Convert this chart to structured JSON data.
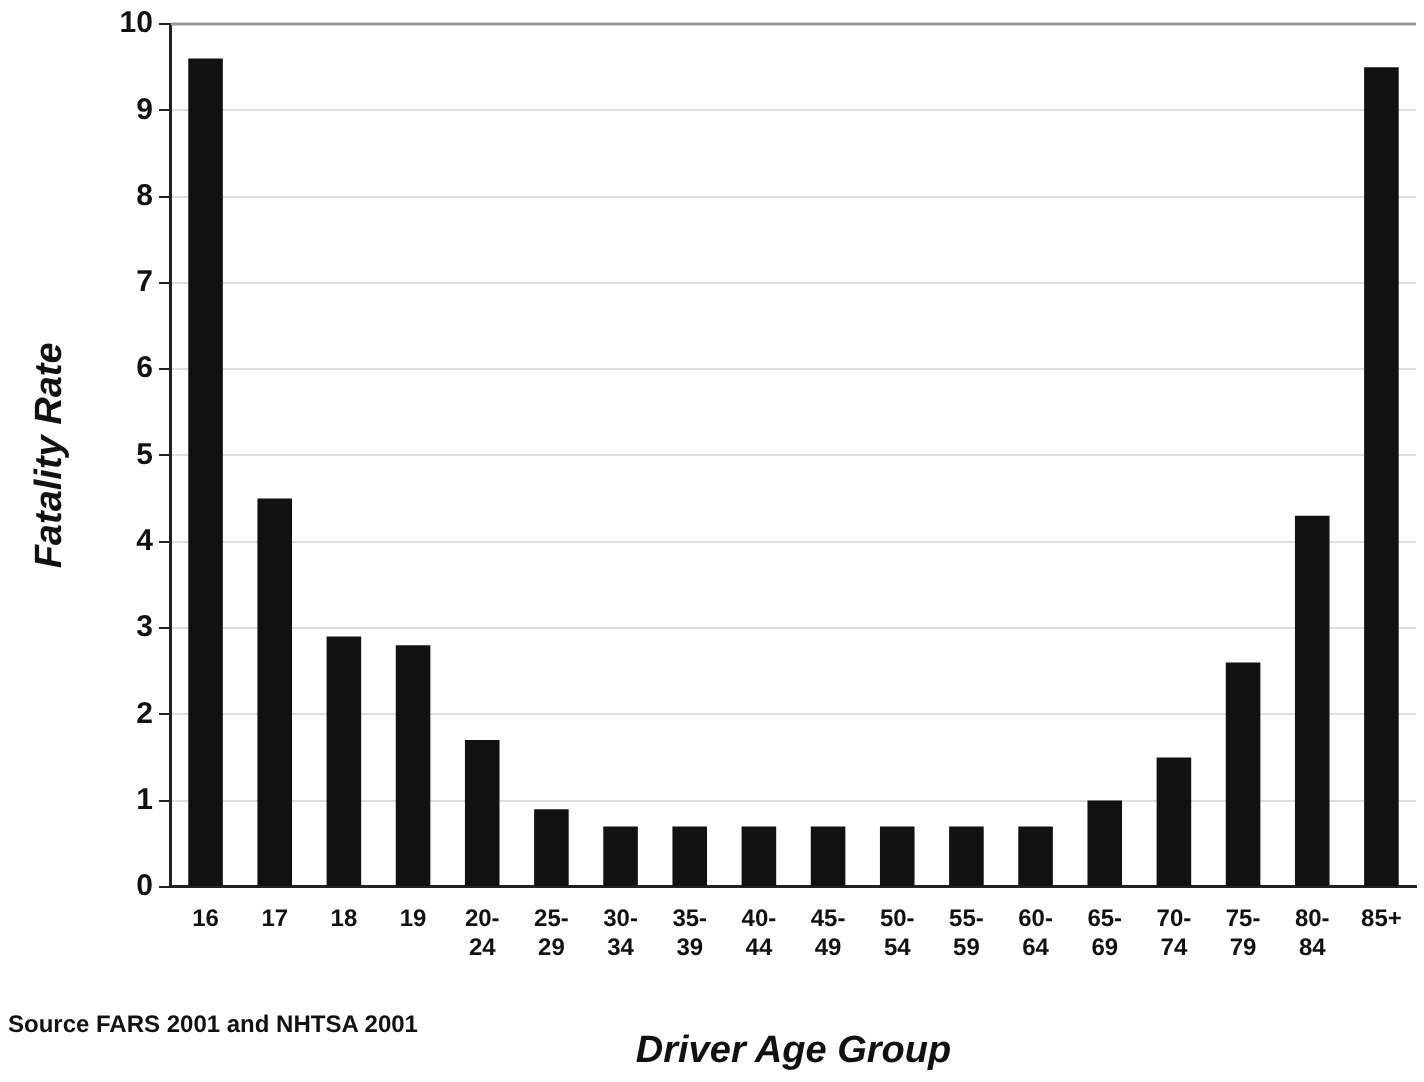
{
  "chart_data": {
    "type": "bar",
    "xlabel": "Driver Age Group",
    "ylabel": "Fatality Rate",
    "categories": [
      "16",
      "17",
      "18",
      "19",
      "20-24",
      "25-29",
      "30-34",
      "35-39",
      "40-44",
      "45-49",
      "50-54",
      "55-59",
      "60-64",
      "65-69",
      "70-74",
      "75-79",
      "80-84",
      "85+"
    ],
    "values": [
      9.6,
      4.5,
      2.9,
      2.8,
      1.7,
      0.9,
      0.7,
      0.7,
      0.7,
      0.7,
      0.7,
      0.7,
      0.7,
      1.0,
      1.5,
      2.6,
      4.3,
      9.5
    ],
    "color": "#111111",
    "ylim": [
      0,
      10
    ],
    "yticks": [
      0,
      1,
      2,
      3,
      4,
      5,
      6,
      7,
      8,
      9,
      10
    ],
    "grid": "y",
    "annotations": [
      "Source  FARS 2001 and NHTSA 2001"
    ]
  }
}
